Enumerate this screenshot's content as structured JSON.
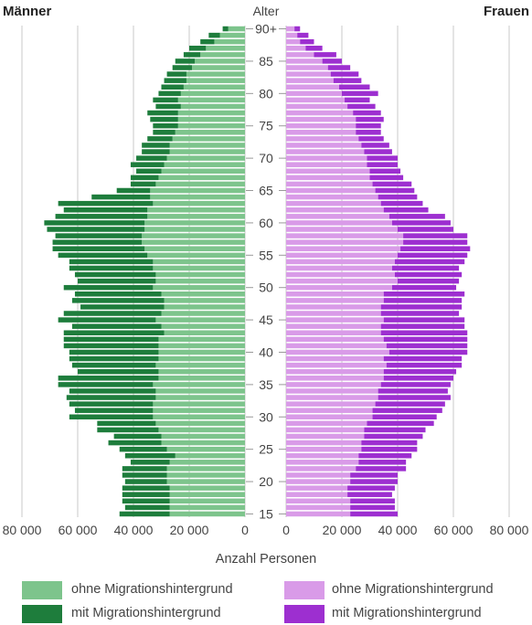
{
  "chart_data": {
    "type": "bar",
    "orientation": "horizontal-population-pyramid",
    "left_title": "Männer",
    "right_title": "Frauen",
    "center_title": "Alter",
    "xlabel": "Anzahl Personen",
    "x_ticks_left": [
      "80 000",
      "60 000",
      "40 000",
      "20 000",
      "0"
    ],
    "x_ticks_right": [
      "0",
      "20 000",
      "40 000",
      "60 000",
      "80 000"
    ],
    "x_tick_values": [
      0,
      20000,
      40000,
      60000,
      80000
    ],
    "xlim": [
      0,
      80000
    ],
    "age_ticks": [
      "15",
      "20",
      "25",
      "30",
      "35",
      "40",
      "45",
      "50",
      "55",
      "60",
      "65",
      "70",
      "75",
      "80",
      "85",
      "90+"
    ],
    "ages": [
      15,
      16,
      17,
      18,
      19,
      20,
      21,
      22,
      23,
      24,
      25,
      26,
      27,
      28,
      29,
      30,
      31,
      32,
      33,
      34,
      35,
      36,
      37,
      38,
      39,
      40,
      41,
      42,
      43,
      44,
      45,
      46,
      47,
      48,
      49,
      50,
      51,
      52,
      53,
      54,
      55,
      56,
      57,
      58,
      59,
      60,
      61,
      62,
      63,
      64,
      65,
      66,
      67,
      68,
      69,
      70,
      71,
      72,
      73,
      74,
      75,
      76,
      77,
      78,
      79,
      80,
      81,
      82,
      83,
      84,
      85,
      86,
      87,
      88,
      89,
      90
    ],
    "series": [
      {
        "name": "ohne Migrationshintergrund",
        "side": "men",
        "color": "#7dc48c",
        "values": [
          27000,
          27000,
          27000,
          27000,
          27000,
          28000,
          28000,
          28000,
          27000,
          25000,
          28000,
          30000,
          30000,
          31000,
          32000,
          33000,
          33000,
          33000,
          32000,
          32000,
          33000,
          31000,
          31000,
          32000,
          31000,
          31000,
          31000,
          31000,
          29000,
          30000,
          32000,
          30000,
          29000,
          29000,
          30000,
          33000,
          32000,
          32000,
          33000,
          33000,
          35000,
          36000,
          37000,
          37000,
          36000,
          36000,
          35000,
          35000,
          33000,
          34000,
          34000,
          32000,
          31000,
          30000,
          29000,
          28000,
          27000,
          27000,
          26000,
          25000,
          24000,
          24000,
          24000,
          23000,
          24000,
          23000,
          22000,
          21000,
          21000,
          19000,
          18000,
          16000,
          14000,
          11000,
          9000,
          6000
        ]
      },
      {
        "name": "mit Migrationshintergrund",
        "side": "men",
        "color": "#1e7d3c",
        "values": [
          18000,
          16000,
          17000,
          17000,
          17000,
          15000,
          16000,
          16000,
          14000,
          18000,
          17000,
          19000,
          17000,
          22000,
          21000,
          30000,
          28000,
          30000,
          32000,
          31000,
          34000,
          36000,
          29000,
          30000,
          32000,
          32000,
          34000,
          34000,
          36000,
          32000,
          35000,
          35000,
          30000,
          33000,
          31000,
          32000,
          28000,
          29000,
          30000,
          30000,
          32000,
          33000,
          32000,
          31000,
          35000,
          36000,
          33000,
          30000,
          34000,
          21000,
          12000,
          9000,
          10000,
          9000,
          12000,
          11000,
          10000,
          10000,
          9000,
          8000,
          9000,
          10000,
          11000,
          9000,
          9000,
          8000,
          8000,
          8000,
          7000,
          7000,
          7000,
          6000,
          6000,
          5000,
          4000,
          2000
        ]
      },
      {
        "name": "ohne Migrationshintergrund",
        "side": "women",
        "color": "#d99be8",
        "values": [
          23000,
          23000,
          23000,
          22000,
          22000,
          23000,
          23000,
          25000,
          26000,
          26000,
          27000,
          27000,
          28000,
          28000,
          29000,
          31000,
          31000,
          32000,
          33000,
          33000,
          34000,
          35000,
          35000,
          36000,
          35000,
          37000,
          36000,
          35000,
          34000,
          34000,
          35000,
          34000,
          34000,
          35000,
          35000,
          38000,
          40000,
          39000,
          38000,
          39000,
          40000,
          41000,
          42000,
          42000,
          40000,
          38000,
          37000,
          35000,
          34000,
          33000,
          32000,
          31000,
          30000,
          30000,
          29000,
          29000,
          28000,
          27000,
          26000,
          25000,
          25000,
          25000,
          24000,
          22000,
          21000,
          20000,
          19000,
          17000,
          16000,
          15000,
          13000,
          10000,
          7000,
          5000,
          4000,
          3000
        ]
      },
      {
        "name": "mit Migrationshintergrund",
        "side": "women",
        "color": "#9d2fd0",
        "values": [
          17000,
          16000,
          16000,
          16000,
          17000,
          17000,
          17000,
          18000,
          17000,
          19000,
          20000,
          20000,
          21000,
          22000,
          24000,
          23000,
          25000,
          25000,
          26000,
          25000,
          25000,
          25000,
          26000,
          27000,
          28000,
          28000,
          29000,
          30000,
          31000,
          30000,
          29000,
          28000,
          29000,
          28000,
          29000,
          23000,
          22000,
          24000,
          24000,
          25000,
          25000,
          25000,
          23000,
          23000,
          20000,
          21000,
          20000,
          16000,
          15000,
          14000,
          14000,
          14000,
          12000,
          11000,
          11000,
          11000,
          10000,
          10000,
          9000,
          9000,
          9000,
          10000,
          10000,
          10000,
          9000,
          13000,
          11000,
          10000,
          10000,
          8000,
          7000,
          8000,
          6000,
          5000,
          4000,
          2000
        ]
      }
    ],
    "legend": [
      {
        "label": "ohne Migrationshintergrund",
        "color": "#7dc48c"
      },
      {
        "label": "mit Migrationshintergrund",
        "color": "#1e7d3c"
      },
      {
        "label": "ohne Migrationshintergrund",
        "color": "#d99be8"
      },
      {
        "label": "mit Migrationshintergrund",
        "color": "#9d2fd0"
      }
    ],
    "legend_placement": "bottom",
    "grid": true
  }
}
